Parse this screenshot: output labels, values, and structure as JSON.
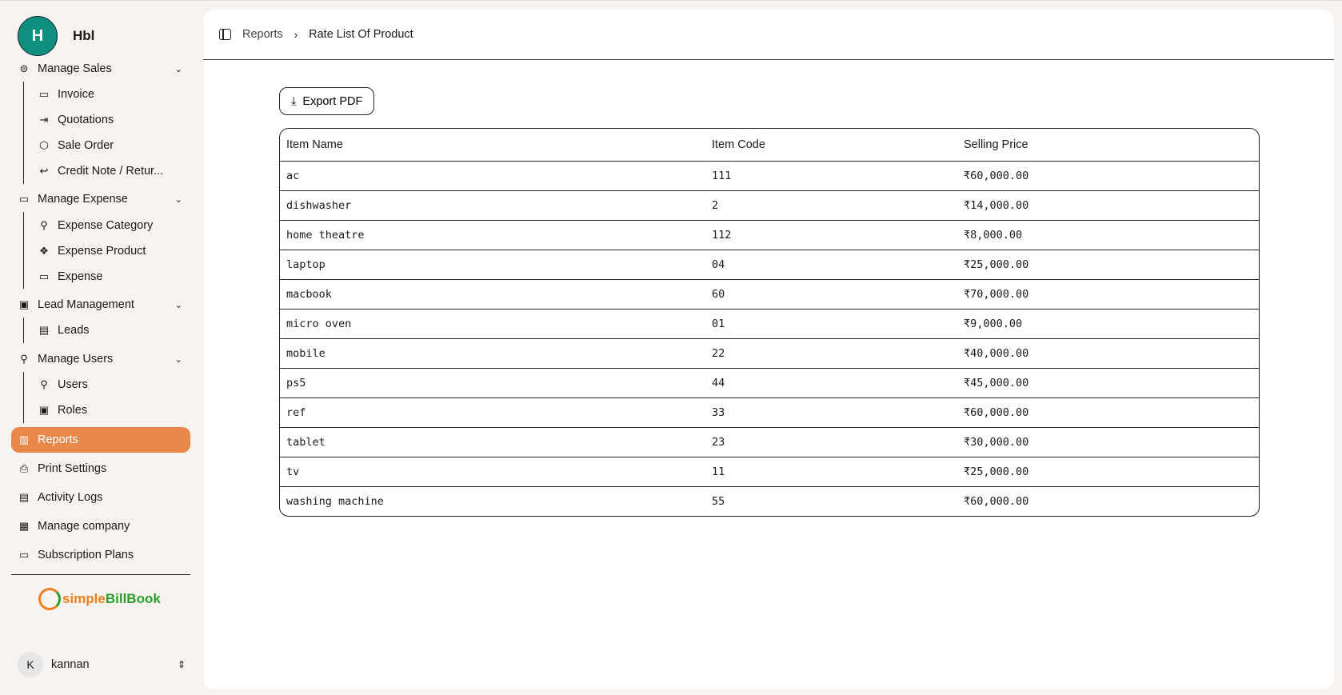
{
  "company": {
    "initial": "H",
    "name": "Hbl"
  },
  "sidebar": {
    "manage_sales": "Manage Sales",
    "invoice": "Invoice",
    "quotations": "Quotations",
    "sale_order": "Sale Order",
    "credit_note": "Credit Note / Retur...",
    "manage_expense": "Manage Expense",
    "expense_category": "Expense Category",
    "expense_product": "Expense Product",
    "expense": "Expense",
    "lead_management": "Lead Management",
    "leads": "Leads",
    "manage_users": "Manage Users",
    "users": "Users",
    "roles": "Roles",
    "reports": "Reports",
    "print_settings": "Print Settings",
    "activity_logs": "Activity Logs",
    "manage_company": "Manage company",
    "subscription_plans": "Subscription Plans"
  },
  "logo": {
    "part1": "simple",
    "part2": "BillBook"
  },
  "user": {
    "initial": "K",
    "name": "kannan"
  },
  "breadcrumb": {
    "parent": "Reports",
    "current": "Rate List Of Product"
  },
  "export_label": "Export PDF",
  "colors": {
    "accent": "#e8894a",
    "avatar": "#0e8f7e"
  },
  "table": {
    "headers": [
      "Item Name",
      "Item Code",
      "Selling Price"
    ],
    "rows": [
      [
        "ac",
        "111",
        "₹60,000.00"
      ],
      [
        "dishwasher",
        "2",
        "₹14,000.00"
      ],
      [
        "home theatre",
        "112",
        "₹8,000.00"
      ],
      [
        "laptop",
        "04",
        "₹25,000.00"
      ],
      [
        "macbook",
        "60",
        "₹70,000.00"
      ],
      [
        "micro oven",
        "01",
        "₹9,000.00"
      ],
      [
        "mobile",
        "22",
        "₹40,000.00"
      ],
      [
        "ps5",
        "44",
        "₹45,000.00"
      ],
      [
        "ref",
        "33",
        "₹60,000.00"
      ],
      [
        "tablet",
        "23",
        "₹30,000.00"
      ],
      [
        "tv",
        "11",
        "₹25,000.00"
      ],
      [
        "washing machine",
        "55",
        "₹60,000.00"
      ]
    ]
  }
}
